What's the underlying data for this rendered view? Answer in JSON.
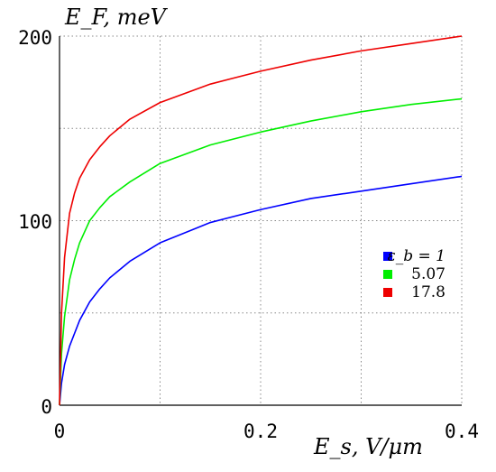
{
  "chart_data": {
    "type": "line",
    "title": "",
    "ylabel": "E_F, meV",
    "xlabel": "E_s, V/μm",
    "xlim": [
      0,
      0.4
    ],
    "ylim": [
      0,
      200
    ],
    "x_ticks": [
      "0",
      "0.2",
      "0.4"
    ],
    "y_ticks": [
      "0",
      "100",
      "200"
    ],
    "grid": "dotted",
    "legend": "right",
    "series": [
      {
        "name": "ε_b = 1",
        "color": "#0000ff",
        "x": [
          0,
          0.002,
          0.005,
          0.01,
          0.015,
          0.02,
          0.03,
          0.04,
          0.05,
          0.07,
          0.1,
          0.15,
          0.2,
          0.25,
          0.3,
          0.35,
          0.4
        ],
        "y": [
          0,
          12,
          22,
          32,
          39,
          46,
          56,
          63,
          69,
          78,
          88,
          99,
          106,
          112,
          116,
          120,
          124
        ]
      },
      {
        "name": "5.07",
        "color": "#00ee00",
        "x": [
          0,
          0.002,
          0.005,
          0.01,
          0.015,
          0.02,
          0.03,
          0.04,
          0.05,
          0.07,
          0.1,
          0.15,
          0.2,
          0.25,
          0.3,
          0.35,
          0.4
        ],
        "y": [
          0,
          28,
          48,
          68,
          79,
          88,
          100,
          107,
          113,
          121,
          131,
          141,
          148,
          154,
          159,
          163,
          166
        ]
      },
      {
        "name": "17.8",
        "color": "#ee0000",
        "x": [
          0,
          0.002,
          0.005,
          0.01,
          0.015,
          0.02,
          0.03,
          0.04,
          0.05,
          0.07,
          0.1,
          0.15,
          0.2,
          0.25,
          0.3,
          0.35,
          0.4
        ],
        "y": [
          0,
          50,
          80,
          104,
          115,
          123,
          133,
          140,
          146,
          155,
          164,
          174,
          181,
          187,
          192,
          196,
          200
        ]
      }
    ]
  },
  "colors": {
    "axis": "#000000",
    "grid": "#888888"
  }
}
